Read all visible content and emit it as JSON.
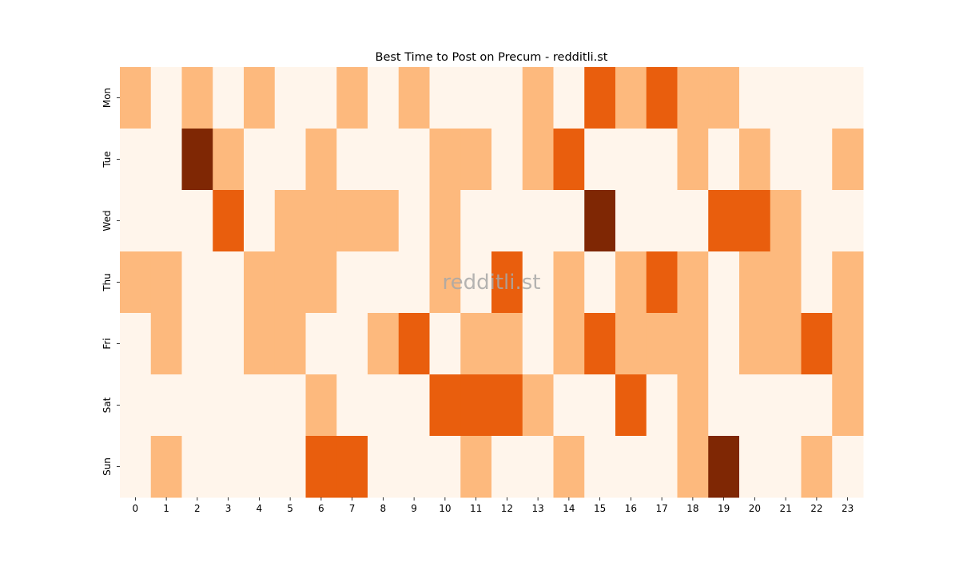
{
  "chart_data": {
    "type": "heatmap",
    "title": "Best Time to Post on Precum - redditli.st",
    "watermark": "redditli.st",
    "x_categories": [
      "0",
      "1",
      "2",
      "3",
      "4",
      "5",
      "6",
      "7",
      "8",
      "9",
      "10",
      "11",
      "12",
      "13",
      "14",
      "15",
      "16",
      "17",
      "18",
      "19",
      "20",
      "21",
      "22",
      "23"
    ],
    "y_categories": [
      "Mon",
      "Tue",
      "Wed",
      "Thu",
      "Fri",
      "Sat",
      "Sun"
    ],
    "values": [
      [
        1,
        0,
        1,
        0,
        1,
        0,
        0,
        1,
        0,
        1,
        0,
        0,
        0,
        1,
        0,
        2,
        1,
        2,
        1,
        1,
        0,
        0,
        0,
        0
      ],
      [
        0,
        0,
        3,
        1,
        0,
        0,
        1,
        0,
        0,
        0,
        1,
        1,
        0,
        1,
        2,
        0,
        0,
        0,
        1,
        0,
        1,
        0,
        0,
        1
      ],
      [
        0,
        0,
        0,
        2,
        0,
        1,
        1,
        1,
        1,
        0,
        1,
        0,
        0,
        0,
        0,
        3,
        0,
        0,
        0,
        2,
        2,
        1,
        0,
        0
      ],
      [
        1,
        1,
        0,
        0,
        1,
        1,
        1,
        0,
        0,
        0,
        1,
        0,
        2,
        0,
        1,
        0,
        1,
        2,
        1,
        0,
        1,
        1,
        0,
        1
      ],
      [
        0,
        1,
        0,
        0,
        1,
        1,
        0,
        0,
        1,
        2,
        0,
        1,
        1,
        0,
        1,
        2,
        1,
        1,
        1,
        0,
        1,
        1,
        2,
        1
      ],
      [
        0,
        0,
        0,
        0,
        0,
        0,
        1,
        0,
        0,
        0,
        2,
        2,
        2,
        1,
        0,
        0,
        2,
        0,
        1,
        0,
        0,
        0,
        0,
        1
      ],
      [
        0,
        1,
        0,
        0,
        0,
        0,
        2,
        2,
        0,
        0,
        0,
        1,
        0,
        0,
        1,
        0,
        0,
        0,
        1,
        3,
        0,
        0,
        1,
        0
      ]
    ],
    "colors": [
      "#fff5eb",
      "#fdb97d",
      "#e95e0d",
      "#7f2704"
    ]
  }
}
